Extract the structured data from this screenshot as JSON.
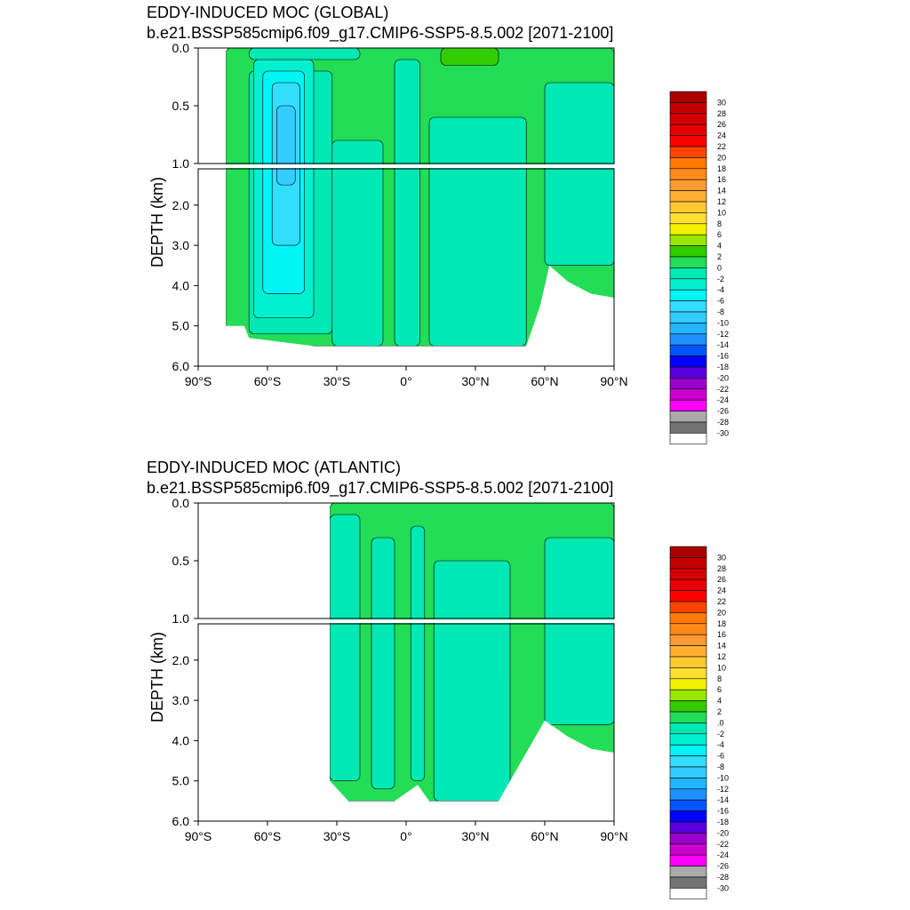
{
  "palette": {
    "30": "#a80000",
    "28": "#c20000",
    "26": "#d40000",
    "24": "#e60000",
    "22": "#ff0000",
    "20": "#ff4400",
    "18": "#ff7a00",
    "16": "#ff8a1a",
    "14": "#ff9a33",
    "12": "#ffb030",
    "10": "#ffc830",
    "8": "#ffe030",
    "6": "#f2f200",
    "4": "#99e600",
    "2": "#33cc00",
    "0": "#22dd55",
    "-2": "#00e8b4",
    "-4": "#00f0d0",
    "-6": "#00f5f5",
    "-8": "#33ddff",
    "-10": "#33ccff",
    "-12": "#22b4ff",
    "-14": "#1e90ff",
    "-16": "#0055ff",
    "-18": "#0000ff",
    "-20": "#5500dd",
    "-22": "#9900cc",
    "-24": "#cc00cc",
    "-26": "#ff00ff",
    "-28": "#aaaaaa",
    "-30": "#737373",
    "below": "#ffffff"
  },
  "chart_data": [
    {
      "type": "heatmap",
      "title": "EDDY-INDUCED MOC (GLOBAL)",
      "subtitle": "b.e21.BSSP585cmip6.f09_g17.CMIP6-SSP5-8.5.002 [2071-2100]",
      "xlabel": "",
      "ylabel": "DEPTH (km)",
      "xlim": [
        -90,
        90
      ],
      "ylim": [
        0,
        6
      ],
      "y_break_km": 1.0,
      "x_ticks": [
        "90°S",
        "60°S",
        "30°S",
        "0°",
        "30°N",
        "60°N",
        "90°N"
      ],
      "y_ticks_upper": [
        "0.0",
        "0.5",
        "1.0"
      ],
      "y_ticks_lower": [
        "2.0",
        "3.0",
        "4.0",
        "5.0",
        "6.0"
      ],
      "colorbar_levels": [
        "30",
        "28",
        "26",
        "24",
        "22",
        "20",
        "18",
        "16",
        "14",
        "12",
        "10",
        "8",
        "6",
        "4",
        "2",
        "0",
        "-2",
        "-4",
        "-6",
        "-8",
        "-10",
        "-12",
        "-14",
        "-16",
        "-18",
        "-20",
        "-22",
        "-24",
        "-26",
        "-28",
        "-30"
      ],
      "field_extent": {
        "lat_range": [
          -78,
          90
        ],
        "bottom_depth_km": [
          [
            -70,
            5.0
          ],
          [
            -68,
            5.3
          ],
          [
            -40,
            5.5
          ],
          [
            52,
            5.5
          ],
          [
            58,
            4.5
          ],
          [
            62,
            3.5
          ],
          [
            70,
            3.9
          ],
          [
            80,
            4.2
          ],
          [
            90,
            4.3
          ]
        ]
      },
      "regions": [
        {
          "lat": [
            -78,
            90
          ],
          "depth": [
            0,
            5.5
          ],
          "value": 0
        },
        {
          "lat": [
            -68,
            -32
          ],
          "depth": [
            0.2,
            5.2
          ],
          "value": -2
        },
        {
          "lat": [
            -66,
            -40
          ],
          "depth": [
            0.1,
            4.8
          ],
          "value": -4
        },
        {
          "lat": [
            -62,
            -44
          ],
          "depth": [
            0.2,
            4.2
          ],
          "value": -6
        },
        {
          "lat": [
            -58,
            -46
          ],
          "depth": [
            0.3,
            3.0
          ],
          "value": -8
        },
        {
          "lat": [
            -56,
            -48
          ],
          "depth": [
            0.5,
            1.5
          ],
          "value": -10
        },
        {
          "lat": [
            -68,
            -20
          ],
          "depth": [
            0,
            0.1
          ],
          "value": -2
        },
        {
          "lat": [
            -32,
            -10
          ],
          "depth": [
            0.8,
            5.5
          ],
          "value": -2
        },
        {
          "lat": [
            -5,
            6
          ],
          "depth": [
            0.1,
            5.5
          ],
          "value": -2
        },
        {
          "lat": [
            10,
            52
          ],
          "depth": [
            0.6,
            5.5
          ],
          "value": -2
        },
        {
          "lat": [
            60,
            90
          ],
          "depth": [
            0.3,
            3.5
          ],
          "value": -2
        },
        {
          "lat": [
            15,
            40
          ],
          "depth": [
            0,
            0.15
          ],
          "value": 2
        }
      ]
    },
    {
      "type": "heatmap",
      "title": "EDDY-INDUCED MOC (ATLANTIC)",
      "subtitle": "b.e21.BSSP585cmip6.f09_g17.CMIP6-SSP5-8.5.002 [2071-2100]",
      "xlabel": "",
      "ylabel": "DEPTH (km)",
      "xlim": [
        -90,
        90
      ],
      "ylim": [
        0,
        6
      ],
      "y_break_km": 1.0,
      "x_ticks": [
        "90°S",
        "60°S",
        "30°S",
        "0°",
        "30°N",
        "60°N",
        "90°N"
      ],
      "y_ticks_upper": [
        "0.0",
        "0.5",
        "1.0"
      ],
      "y_ticks_lower": [
        "2.0",
        "3.0",
        "4.0",
        "5.0",
        "6.0"
      ],
      "colorbar_levels": [
        "30",
        "28",
        "26",
        "24",
        "22",
        "20",
        "18",
        "16",
        "14",
        "12",
        "10",
        "8",
        "6",
        "4",
        "2",
        ".0",
        "-2",
        "-4",
        "-6",
        "-8",
        "-10",
        "-12",
        "-14",
        "-16",
        "-18",
        "-20",
        "-22",
        "-24",
        "-26",
        "-28",
        "-30"
      ],
      "field_extent": {
        "lat_range": [
          -33,
          90
        ],
        "bottom_depth_km": [
          [
            -33,
            5.0
          ],
          [
            -25,
            5.5
          ],
          [
            -5,
            5.5
          ],
          [
            5,
            5.1
          ],
          [
            10,
            5.5
          ],
          [
            40,
            5.5
          ],
          [
            50,
            4.5
          ],
          [
            60,
            3.5
          ],
          [
            70,
            3.9
          ],
          [
            80,
            4.2
          ],
          [
            90,
            4.3
          ]
        ]
      },
      "regions": [
        {
          "lat": [
            -33,
            90
          ],
          "depth": [
            0,
            5.5
          ],
          "value": 0
        },
        {
          "lat": [
            -33,
            -20
          ],
          "depth": [
            0.1,
            5.0
          ],
          "value": -2
        },
        {
          "lat": [
            -15,
            -5
          ],
          "depth": [
            0.3,
            5.2
          ],
          "value": -2
        },
        {
          "lat": [
            2,
            8
          ],
          "depth": [
            0.2,
            5.0
          ],
          "value": -2
        },
        {
          "lat": [
            12,
            45
          ],
          "depth": [
            0.5,
            5.5
          ],
          "value": -2
        },
        {
          "lat": [
            60,
            90
          ],
          "depth": [
            0.3,
            3.6
          ],
          "value": -2
        }
      ]
    }
  ]
}
